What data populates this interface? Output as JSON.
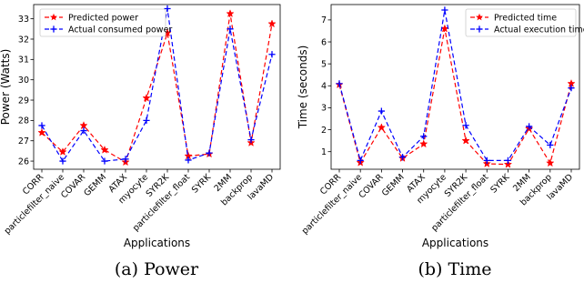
{
  "chart_data": [
    {
      "type": "line",
      "caption": "(a) Power",
      "xlabel": "Applications",
      "ylabel": "Power (Watts)",
      "ylim": [
        25.6,
        33.7
      ],
      "yticks": [
        26,
        27,
        28,
        29,
        30,
        31,
        32,
        33
      ],
      "grid": false,
      "legend_position": "top-left",
      "categories": [
        "CORR",
        "particlefilter_naive",
        "COVAR",
        "GEMM",
        "ATAX",
        "myocyte",
        "SYR2K",
        "particlefilter_float",
        "SYRK",
        "2MM",
        "backprop",
        "lavaMD"
      ],
      "series": [
        {
          "name": "Predicted power",
          "color": "#ff0000",
          "marker": "star",
          "values": [
            27.4,
            26.45,
            27.75,
            26.55,
            25.95,
            29.1,
            32.3,
            26.25,
            26.35,
            33.25,
            26.9,
            32.75
          ]
        },
        {
          "name": "Actual consumed power",
          "color": "#0000ff",
          "marker": "plus",
          "values": [
            27.75,
            26.0,
            27.5,
            26.0,
            26.1,
            28.0,
            33.5,
            26.05,
            26.4,
            32.5,
            27.05,
            31.25
          ]
        }
      ]
    },
    {
      "type": "line",
      "caption": "(b) Time",
      "xlabel": "Applications",
      "ylabel": "Time (seconds)",
      "ylim": [
        0.2,
        7.7
      ],
      "yticks": [
        1,
        2,
        3,
        4,
        5,
        6,
        7
      ],
      "grid": false,
      "legend_position": "top-right",
      "categories": [
        "CORR",
        "particlefilter_naive",
        "COVAR",
        "GEMM",
        "ATAX",
        "myocyte",
        "SYR2K",
        "particlefilter_float",
        "SYRK",
        "2MM",
        "backprop",
        "lavaMD"
      ],
      "series": [
        {
          "name": "Predicted time",
          "color": "#ff0000",
          "marker": "star",
          "values": [
            4.05,
            0.5,
            2.1,
            0.7,
            1.35,
            6.6,
            1.5,
            0.45,
            0.42,
            2.05,
            0.48,
            4.1
          ]
        },
        {
          "name": "Actual execution time",
          "color": "#0000ff",
          "marker": "plus",
          "values": [
            4.1,
            0.6,
            2.85,
            0.75,
            1.7,
            7.45,
            2.2,
            0.6,
            0.6,
            2.15,
            1.3,
            3.9
          ]
        }
      ]
    }
  ]
}
